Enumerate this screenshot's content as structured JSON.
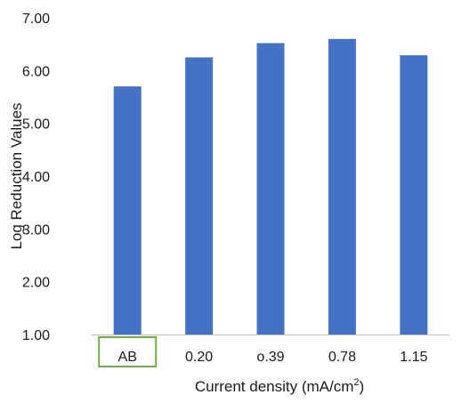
{
  "chart_data": {
    "type": "bar",
    "title": "",
    "xlabel": "Current density (mA/cm",
    "xlabel_superscript": "2",
    "xlabel_suffix": ")",
    "ylabel": "Log Reduction Values",
    "categories": [
      "AB",
      "0.20",
      "o.39",
      "0.78",
      "1.15"
    ],
    "values": [
      5.7,
      6.25,
      6.52,
      6.6,
      6.29
    ],
    "ylim": [
      1.0,
      7.0
    ],
    "yticks": [
      "1.00",
      "2.00",
      "3.00",
      "4.00",
      "5.00",
      "6.00",
      "7.00"
    ],
    "grid": false,
    "legend": "none",
    "highlighted_category": "AB",
    "colors": {
      "bar": "#4472C4",
      "highlight_box": "#70AD47",
      "axis": "#BFBFBF",
      "text": "#1a1a1a"
    }
  }
}
